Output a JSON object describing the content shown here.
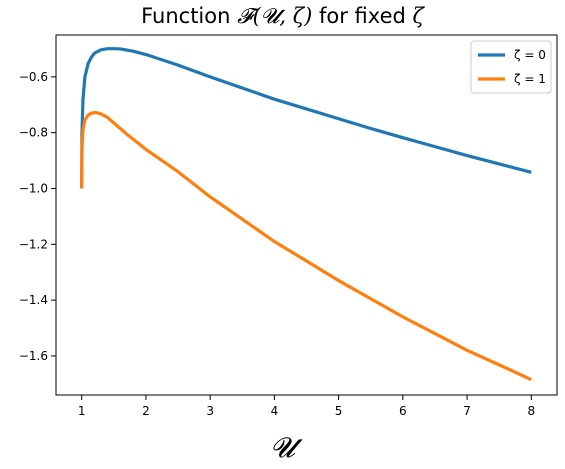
{
  "chart_data": {
    "type": "line",
    "title_prefix": "Function ",
    "title_math": "𝓕(𝓤, ζ)",
    "title_suffix": " for fixed ",
    "title_var": "ζ",
    "xlabel": "𝓤",
    "ylabel": "",
    "xlim": [
      0.6,
      8.4
    ],
    "ylim": [
      -1.74,
      -0.45
    ],
    "xticks": [
      1,
      2,
      3,
      4,
      5,
      6,
      7,
      8
    ],
    "xtick_labels": [
      "1",
      "2",
      "3",
      "4",
      "5",
      "6",
      "7",
      "8"
    ],
    "yticks": [
      -1.6,
      -1.4,
      -1.2,
      -1.0,
      -0.8,
      -0.6
    ],
    "ytick_labels": [
      "−1.6",
      "−1.4",
      "−1.2",
      "−1.0",
      "−0.8",
      "−0.6"
    ],
    "grid": false,
    "legend_position": "top-right",
    "series": [
      {
        "name": "ζ = 0",
        "color": "#1f77b4",
        "x": [
          1.0,
          1.005,
          1.02,
          1.05,
          1.1,
          1.15,
          1.2,
          1.3,
          1.4,
          1.5,
          1.6,
          1.8,
          2.0,
          2.5,
          3.0,
          3.5,
          4.0,
          4.5,
          5.0,
          5.5,
          6.0,
          6.5,
          7.0,
          7.5,
          8.0
        ],
        "y": [
          -1.0,
          -0.8,
          -0.68,
          -0.6,
          -0.552,
          -0.53,
          -0.515,
          -0.503,
          -0.499,
          -0.499,
          -0.5,
          -0.508,
          -0.52,
          -0.558,
          -0.6,
          -0.64,
          -0.68,
          -0.715,
          -0.75,
          -0.785,
          -0.818,
          -0.85,
          -0.882,
          -0.912,
          -0.942
        ]
      },
      {
        "name": "ζ = 1",
        "color": "#ff7f0e",
        "x": [
          1.0,
          1.005,
          1.02,
          1.05,
          1.1,
          1.15,
          1.2,
          1.25,
          1.3,
          1.4,
          1.5,
          1.7,
          2.0,
          2.5,
          3.0,
          3.5,
          4.0,
          4.5,
          5.0,
          5.5,
          6.0,
          6.5,
          7.0,
          7.5,
          8.0
        ],
        "y": [
          -1.0,
          -0.86,
          -0.79,
          -0.755,
          -0.737,
          -0.73,
          -0.728,
          -0.729,
          -0.733,
          -0.745,
          -0.765,
          -0.805,
          -0.86,
          -0.94,
          -1.03,
          -1.11,
          -1.19,
          -1.26,
          -1.33,
          -1.395,
          -1.46,
          -1.52,
          -1.58,
          -1.632,
          -1.685
        ]
      }
    ]
  }
}
